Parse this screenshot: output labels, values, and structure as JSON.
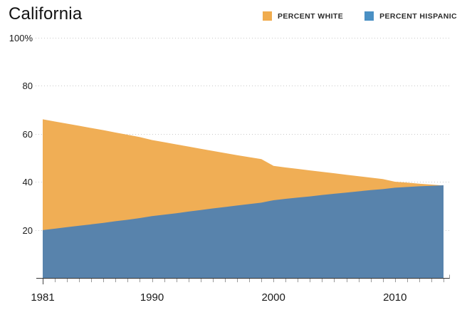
{
  "header": {
    "title": "California"
  },
  "legend": {
    "items": [
      {
        "label": "PERCENT WHITE",
        "color": "#F0AC4E"
      },
      {
        "label": "PERCENT HISPANIC",
        "color": "#4A90C4"
      }
    ]
  },
  "chart_data": {
    "type": "area",
    "title": "California",
    "x": [
      1981,
      1982,
      1983,
      1984,
      1985,
      1986,
      1987,
      1988,
      1989,
      1990,
      1991,
      1992,
      1993,
      1994,
      1995,
      1996,
      1997,
      1998,
      1999,
      2000,
      2001,
      2002,
      2003,
      2004,
      2005,
      2006,
      2007,
      2008,
      2009,
      2010,
      2011,
      2012,
      2013,
      2014
    ],
    "series": [
      {
        "name": "PERCENT WHITE",
        "fill_color": "#F0AE55",
        "legend_color": "#F0AC4E",
        "values": [
          66.0,
          65.1,
          64.2,
          63.3,
          62.4,
          61.5,
          60.5,
          59.6,
          58.6,
          57.4,
          56.5,
          55.6,
          54.7,
          53.8,
          52.9,
          52.0,
          51.1,
          50.3,
          49.5,
          46.7,
          46.0,
          45.4,
          44.8,
          44.2,
          43.6,
          43.0,
          42.4,
          41.8,
          41.2,
          40.1,
          39.7,
          39.3,
          38.9,
          38.5
        ]
      },
      {
        "name": "PERCENT HISPANIC",
        "fill_color": "#5883AC",
        "legend_color": "#4A90C4",
        "values": [
          20.0,
          20.6,
          21.2,
          21.8,
          22.4,
          23.0,
          23.7,
          24.3,
          25.0,
          25.8,
          26.4,
          27.0,
          27.7,
          28.3,
          29.0,
          29.6,
          30.2,
          30.8,
          31.4,
          32.4,
          33.0,
          33.5,
          34.0,
          34.6,
          35.1,
          35.6,
          36.1,
          36.6,
          37.0,
          37.6,
          37.9,
          38.2,
          38.4,
          38.6
        ]
      }
    ],
    "xlabel": "",
    "ylabel": "",
    "xlim": [
      1981,
      2014
    ],
    "ylim": [
      0,
      100
    ],
    "y_ticks": [
      20,
      40,
      60,
      80,
      100
    ],
    "y_tick_labels": [
      "20",
      "40",
      "60",
      "80",
      "100%"
    ],
    "x_tick_years": [
      1981,
      1990,
      2000,
      2010
    ],
    "x_tick_labels": [
      "1981",
      "1990",
      "2000",
      "2010"
    ],
    "x_minor_ticks_every_year": true,
    "grid": "dotted-horizontal",
    "legend_position": "top-right",
    "grid_color": "#c9c9c9",
    "axis_color": "#333333",
    "tick_color": "#999999",
    "label_color": "#1a1a1a"
  }
}
